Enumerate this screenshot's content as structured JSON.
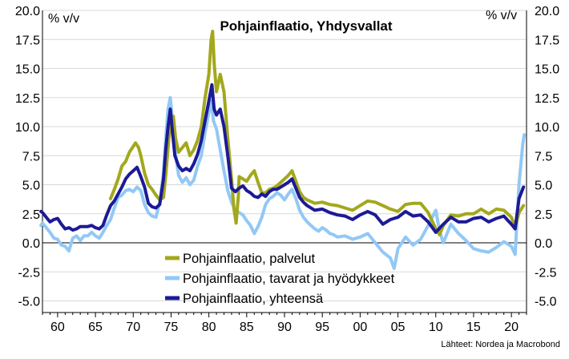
{
  "chart_data": {
    "type": "line",
    "title": "Pohjainflaatio, Yhdysvallat",
    "ylabel_left": "% v/v",
    "ylabel_right": "% v/v",
    "source": "Lähteet: Nordea ja Macrobond",
    "xlim": [
      1958,
      2022
    ],
    "ylim": [
      -6,
      20
    ],
    "x_ticks": [
      1960,
      1965,
      1970,
      1975,
      1980,
      1985,
      1990,
      1995,
      2000,
      2005,
      2010,
      2015,
      2020
    ],
    "x_tick_labels": [
      "60",
      "65",
      "70",
      "75",
      "80",
      "85",
      "90",
      "95",
      "00",
      "05",
      "10",
      "15",
      "20"
    ],
    "y_ticks": [
      -5,
      -2.5,
      0,
      2.5,
      5,
      7.5,
      10,
      12.5,
      15,
      17.5,
      20
    ],
    "y_tick_labels": [
      "-5.0",
      "-2.5",
      "0.0",
      "2.5",
      "5.0",
      "7.5",
      "10.0",
      "12.5",
      "15.0",
      "17.5",
      "20.0"
    ],
    "grid": true,
    "legend_position": "bottom-center",
    "series": [
      {
        "name": "Pohjainflaatio, palvelut",
        "color": "#a3a81c",
        "points": [
          [
            1967,
            3.8
          ],
          [
            1967.5,
            4.6
          ],
          [
            1968,
            5.5
          ],
          [
            1968.5,
            6.6
          ],
          [
            1969,
            7.0
          ],
          [
            1969.5,
            7.8
          ],
          [
            1970,
            8.3
          ],
          [
            1970.3,
            8.6
          ],
          [
            1970.7,
            8.2
          ],
          [
            1971,
            7.5
          ],
          [
            1971.5,
            6.0
          ],
          [
            1972,
            5.0
          ],
          [
            1972.5,
            4.6
          ],
          [
            1973,
            4.1
          ],
          [
            1973.5,
            3.7
          ],
          [
            1974,
            3.9
          ],
          [
            1974.3,
            5.8
          ],
          [
            1974.7,
            8.9
          ],
          [
            1975,
            10.5
          ],
          [
            1975.3,
            10.9
          ],
          [
            1975.6,
            9.0
          ],
          [
            1976,
            7.8
          ],
          [
            1976.5,
            8.2
          ],
          [
            1977,
            8.6
          ],
          [
            1977.5,
            7.5
          ],
          [
            1978,
            8.0
          ],
          [
            1978.5,
            8.8
          ],
          [
            1979,
            10.0
          ],
          [
            1979.5,
            12.5
          ],
          [
            1980,
            14.5
          ],
          [
            1980.3,
            17.5
          ],
          [
            1980.5,
            18.2
          ],
          [
            1980.7,
            15.5
          ],
          [
            1981,
            13.0
          ],
          [
            1981.5,
            14.5
          ],
          [
            1982,
            13.0
          ],
          [
            1982.5,
            9.0
          ],
          [
            1983,
            5.5
          ],
          [
            1983.3,
            3.0
          ],
          [
            1983.6,
            1.7
          ],
          [
            1983.9,
            4.0
          ],
          [
            1984,
            5.7
          ],
          [
            1984.5,
            5.5
          ],
          [
            1985,
            5.3
          ],
          [
            1985.5,
            5.8
          ],
          [
            1986,
            6.2
          ],
          [
            1986.5,
            5.2
          ],
          [
            1987,
            4.3
          ],
          [
            1987.5,
            4.3
          ],
          [
            1988,
            4.6
          ],
          [
            1988.5,
            4.7
          ],
          [
            1989,
            4.9
          ],
          [
            1989.5,
            5.2
          ],
          [
            1990,
            5.5
          ],
          [
            1990.5,
            5.8
          ],
          [
            1991,
            6.2
          ],
          [
            1991.5,
            5.3
          ],
          [
            1992,
            4.4
          ],
          [
            1992.5,
            3.9
          ],
          [
            1993,
            3.7
          ],
          [
            1994,
            3.4
          ],
          [
            1995,
            3.5
          ],
          [
            1996,
            3.3
          ],
          [
            1997,
            3.2
          ],
          [
            1998,
            3.0
          ],
          [
            1999,
            2.8
          ],
          [
            2000,
            3.2
          ],
          [
            2001,
            3.6
          ],
          [
            2002,
            3.5
          ],
          [
            2003,
            3.2
          ],
          [
            2004,
            2.9
          ],
          [
            2005,
            2.7
          ],
          [
            2006,
            3.3
          ],
          [
            2007,
            3.4
          ],
          [
            2008,
            3.4
          ],
          [
            2009,
            2.6
          ],
          [
            2010,
            1.2
          ],
          [
            2010.5,
            0.7
          ],
          [
            2011,
            1.5
          ],
          [
            2012,
            2.4
          ],
          [
            2013,
            2.3
          ],
          [
            2014,
            2.5
          ],
          [
            2015,
            2.5
          ],
          [
            2016,
            2.9
          ],
          [
            2017,
            2.5
          ],
          [
            2018,
            2.9
          ],
          [
            2019,
            2.8
          ],
          [
            2020,
            2.2
          ],
          [
            2020.5,
            1.3
          ],
          [
            2021,
            2.6
          ],
          [
            2021.6,
            3.2
          ]
        ]
      },
      {
        "name": "Pohjainflaatio, tavarat ja hyödykkeet",
        "color": "#92c8f5",
        "points": [
          [
            1957.8,
            1.5
          ],
          [
            1958,
            1.7
          ],
          [
            1958.5,
            1.3
          ],
          [
            1959,
            0.9
          ],
          [
            1959.5,
            0.4
          ],
          [
            1960,
            0.3
          ],
          [
            1960.5,
            -0.2
          ],
          [
            1961,
            -0.3
          ],
          [
            1961.5,
            -0.7
          ],
          [
            1962,
            0.4
          ],
          [
            1962.5,
            0.6
          ],
          [
            1963,
            0.2
          ],
          [
            1963.5,
            0.6
          ],
          [
            1964,
            0.6
          ],
          [
            1964.5,
            0.9
          ],
          [
            1965,
            0.6
          ],
          [
            1965.5,
            0.4
          ],
          [
            1966,
            0.9
          ],
          [
            1966.5,
            1.5
          ],
          [
            1967,
            2.0
          ],
          [
            1967.5,
            3.0
          ],
          [
            1968,
            3.9
          ],
          [
            1968.5,
            4.1
          ],
          [
            1969,
            4.5
          ],
          [
            1969.5,
            4.6
          ],
          [
            1970,
            4.4
          ],
          [
            1970.5,
            4.8
          ],
          [
            1971,
            4.5
          ],
          [
            1971.5,
            3.3
          ],
          [
            1972,
            2.6
          ],
          [
            1972.5,
            2.3
          ],
          [
            1973,
            2.2
          ],
          [
            1973.5,
            3.5
          ],
          [
            1974,
            6.0
          ],
          [
            1974.3,
            9.0
          ],
          [
            1974.6,
            11.5
          ],
          [
            1974.9,
            12.5
          ],
          [
            1975.2,
            10.5
          ],
          [
            1975.5,
            8.0
          ],
          [
            1976,
            5.8
          ],
          [
            1976.5,
            5.2
          ],
          [
            1977,
            5.6
          ],
          [
            1977.5,
            5.0
          ],
          [
            1978,
            5.4
          ],
          [
            1978.5,
            6.6
          ],
          [
            1979,
            7.5
          ],
          [
            1979.5,
            9.5
          ],
          [
            1980,
            11.2
          ],
          [
            1980.3,
            12.2
          ],
          [
            1980.6,
            10.5
          ],
          [
            1981,
            9.8
          ],
          [
            1981.5,
            8.0
          ],
          [
            1982,
            6.2
          ],
          [
            1982.5,
            4.5
          ],
          [
            1983,
            3.5
          ],
          [
            1983.5,
            2.8
          ],
          [
            1984,
            2.6
          ],
          [
            1984.5,
            2.4
          ],
          [
            1985,
            1.9
          ],
          [
            1985.5,
            1.5
          ],
          [
            1986,
            0.8
          ],
          [
            1986.5,
            1.4
          ],
          [
            1987,
            2.2
          ],
          [
            1987.5,
            3.3
          ],
          [
            1988,
            3.8
          ],
          [
            1988.5,
            4.0
          ],
          [
            1989,
            4.3
          ],
          [
            1989.5,
            4.1
          ],
          [
            1990,
            3.7
          ],
          [
            1990.5,
            4.2
          ],
          [
            1991,
            4.6
          ],
          [
            1991.5,
            3.8
          ],
          [
            1992,
            2.8
          ],
          [
            1992.5,
            2.2
          ],
          [
            1993,
            1.8
          ],
          [
            1993.5,
            1.5
          ],
          [
            1994,
            1.2
          ],
          [
            1994.5,
            1.0
          ],
          [
            1995,
            1.3
          ],
          [
            1995.5,
            1.1
          ],
          [
            1996,
            0.8
          ],
          [
            1996.5,
            0.7
          ],
          [
            1997,
            0.5
          ],
          [
            1998,
            0.6
          ],
          [
            1999,
            0.3
          ],
          [
            2000,
            0.5
          ],
          [
            2001,
            0.8
          ],
          [
            2002,
            0.0
          ],
          [
            2003,
            -0.8
          ],
          [
            2004,
            -1.3
          ],
          [
            2004.5,
            -2.2
          ],
          [
            2005,
            -0.5
          ],
          [
            2006,
            0.5
          ],
          [
            2007,
            -0.2
          ],
          [
            2008,
            0.3
          ],
          [
            2009,
            1.5
          ],
          [
            2010,
            2.8
          ],
          [
            2010.5,
            1.0
          ],
          [
            2011,
            0.0
          ],
          [
            2012,
            1.6
          ],
          [
            2013,
            0.8
          ],
          [
            2014,
            0.2
          ],
          [
            2015,
            -0.5
          ],
          [
            2016,
            -0.7
          ],
          [
            2017,
            -0.8
          ],
          [
            2018,
            -0.4
          ],
          [
            2019,
            0.1
          ],
          [
            2020,
            -0.3
          ],
          [
            2020.5,
            -1.0
          ],
          [
            2021,
            5.0
          ],
          [
            2021.5,
            8.5
          ],
          [
            2021.7,
            9.3
          ]
        ]
      },
      {
        "name": "Pohjainflaatio, yhteensä",
        "color": "#1c1a96",
        "points": [
          [
            1957.8,
            2.7
          ],
          [
            1958,
            2.6
          ],
          [
            1958.5,
            2.2
          ],
          [
            1959,
            1.8
          ],
          [
            1959.5,
            2.0
          ],
          [
            1960,
            2.1
          ],
          [
            1960.5,
            1.6
          ],
          [
            1961,
            1.2
          ],
          [
            1961.5,
            1.3
          ],
          [
            1962,
            1.1
          ],
          [
            1962.5,
            1.2
          ],
          [
            1963,
            1.4
          ],
          [
            1963.5,
            1.4
          ],
          [
            1964,
            1.4
          ],
          [
            1964.5,
            1.5
          ],
          [
            1965,
            1.3
          ],
          [
            1965.5,
            1.2
          ],
          [
            1966,
            1.5
          ],
          [
            1966.5,
            2.4
          ],
          [
            1967,
            3.2
          ],
          [
            1967.5,
            3.6
          ],
          [
            1968,
            4.2
          ],
          [
            1968.5,
            4.8
          ],
          [
            1969,
            5.5
          ],
          [
            1969.5,
            5.9
          ],
          [
            1970,
            6.2
          ],
          [
            1970.5,
            6.5
          ],
          [
            1971,
            5.7
          ],
          [
            1971.5,
            4.8
          ],
          [
            1972,
            3.4
          ],
          [
            1972.5,
            3.1
          ],
          [
            1973,
            3.0
          ],
          [
            1973.5,
            3.3
          ],
          [
            1974,
            5.5
          ],
          [
            1974.3,
            8.0
          ],
          [
            1974.6,
            10.0
          ],
          [
            1974.9,
            11.5
          ],
          [
            1975.2,
            9.5
          ],
          [
            1975.5,
            7.5
          ],
          [
            1976,
            6.6
          ],
          [
            1976.5,
            6.2
          ],
          [
            1977,
            6.4
          ],
          [
            1977.5,
            6.2
          ],
          [
            1978,
            6.8
          ],
          [
            1978.5,
            7.6
          ],
          [
            1979,
            8.8
          ],
          [
            1979.5,
            10.5
          ],
          [
            1980,
            12.2
          ],
          [
            1980.4,
            13.6
          ],
          [
            1980.7,
            11.5
          ],
          [
            1981,
            11.0
          ],
          [
            1981.5,
            11.5
          ],
          [
            1982,
            10.0
          ],
          [
            1982.5,
            7.5
          ],
          [
            1983,
            4.7
          ],
          [
            1983.5,
            4.4
          ],
          [
            1984,
            4.7
          ],
          [
            1984.5,
            4.9
          ],
          [
            1985,
            4.5
          ],
          [
            1985.5,
            4.3
          ],
          [
            1986,
            4.0
          ],
          [
            1986.5,
            3.9
          ],
          [
            1987,
            4.2
          ],
          [
            1987.5,
            4.0
          ],
          [
            1988,
            4.4
          ],
          [
            1988.5,
            4.6
          ],
          [
            1989,
            4.6
          ],
          [
            1989.5,
            4.8
          ],
          [
            1990,
            5.0
          ],
          [
            1990.5,
            5.2
          ],
          [
            1991,
            5.5
          ],
          [
            1991.5,
            4.7
          ],
          [
            1992,
            3.9
          ],
          [
            1992.5,
            3.5
          ],
          [
            1993,
            3.2
          ],
          [
            1994,
            2.8
          ],
          [
            1995,
            2.9
          ],
          [
            1996,
            2.6
          ],
          [
            1997,
            2.4
          ],
          [
            1998,
            2.3
          ],
          [
            1999,
            2.0
          ],
          [
            2000,
            2.4
          ],
          [
            2001,
            2.7
          ],
          [
            2002,
            2.4
          ],
          [
            2003,
            1.6
          ],
          [
            2004,
            2.0
          ],
          [
            2005,
            2.2
          ],
          [
            2006,
            2.7
          ],
          [
            2007,
            2.3
          ],
          [
            2008,
            2.4
          ],
          [
            2009,
            1.8
          ],
          [
            2010,
            0.9
          ],
          [
            2011,
            1.6
          ],
          [
            2012,
            2.2
          ],
          [
            2013,
            1.8
          ],
          [
            2014,
            1.8
          ],
          [
            2015,
            2.1
          ],
          [
            2016,
            2.2
          ],
          [
            2017,
            1.8
          ],
          [
            2018,
            2.1
          ],
          [
            2019,
            2.3
          ],
          [
            2020,
            1.6
          ],
          [
            2020.5,
            1.2
          ],
          [
            2021,
            3.8
          ],
          [
            2021.6,
            4.8
          ]
        ]
      }
    ]
  }
}
